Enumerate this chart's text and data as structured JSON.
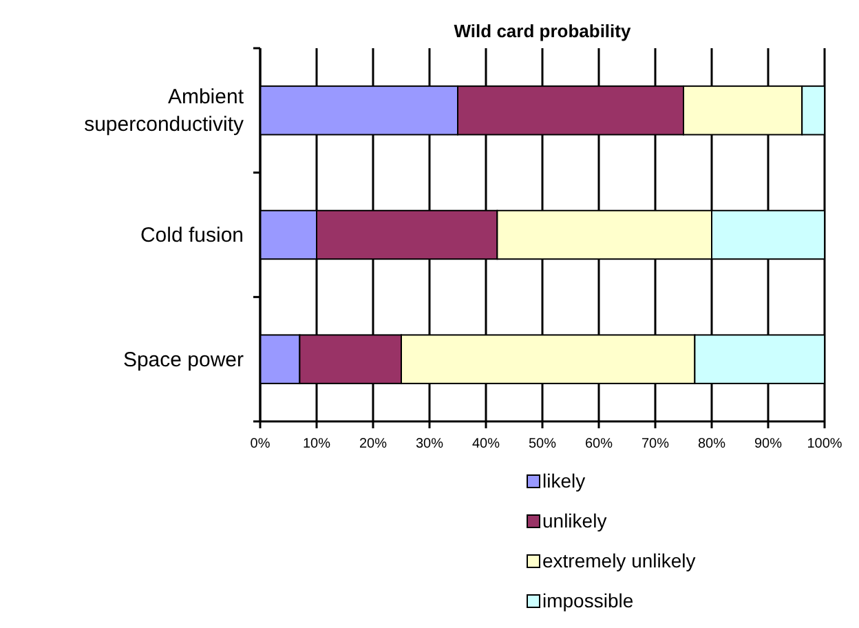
{
  "chart_data": {
    "type": "bar",
    "title": "Wild card probability",
    "orientation": "horizontal",
    "stacked": true,
    "categories": [
      "Ambient superconductivity",
      "Cold fusion",
      "Space power"
    ],
    "series": [
      {
        "name": "likely",
        "color": "#9999ff",
        "values": [
          35,
          10,
          7
        ]
      },
      {
        "name": "unlikely",
        "color": "#993366",
        "values": [
          40,
          32,
          18
        ]
      },
      {
        "name": "extremely unlikely",
        "color": "#ffffcc",
        "values": [
          21,
          38,
          52
        ]
      },
      {
        "name": "impossible",
        "color": "#ccffff",
        "values": [
          4,
          20,
          23
        ]
      }
    ],
    "xlim": [
      0,
      100
    ],
    "xticks": [
      {
        "value": 0,
        "label": "0%"
      },
      {
        "value": 10,
        "label": "10%"
      },
      {
        "value": 20,
        "label": "20%"
      },
      {
        "value": 30,
        "label": "30%"
      },
      {
        "value": 40,
        "label": "40%"
      },
      {
        "value": 50,
        "label": "50%"
      },
      {
        "value": 60,
        "label": "60%"
      },
      {
        "value": 70,
        "label": "70%"
      },
      {
        "value": 80,
        "label": "80%"
      },
      {
        "value": 90,
        "label": "90%"
      },
      {
        "value": 100,
        "label": "100%"
      }
    ],
    "grid": "x",
    "legend": "bottom"
  }
}
